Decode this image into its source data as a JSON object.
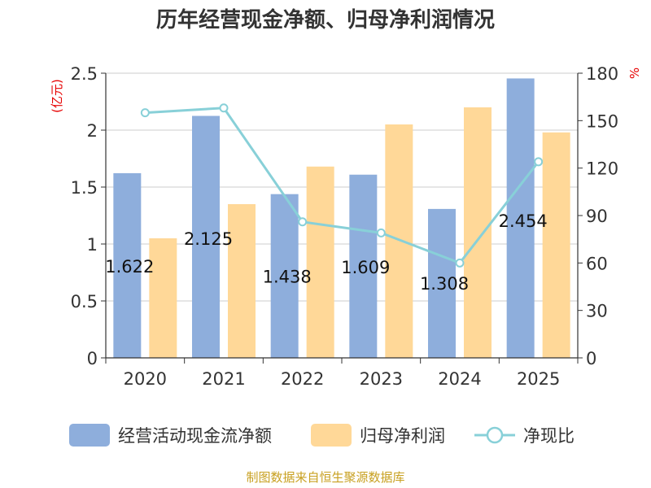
{
  "title": "历年经营现金净额、归母净利润情况",
  "source": "制图数据来自恒生聚源数据库",
  "chart_data": {
    "type": "bar",
    "categories": [
      "2020",
      "2021",
      "2022",
      "2023",
      "2024",
      "2025"
    ],
    "series": [
      {
        "name": "经营活动现金流净额",
        "kind": "bar",
        "axis": "left",
        "values": [
          1.622,
          2.125,
          1.438,
          1.609,
          1.308,
          2.454
        ],
        "color": "#8eaedc"
      },
      {
        "name": "归母净利润",
        "kind": "bar",
        "axis": "left",
        "values": [
          1.05,
          1.35,
          1.68,
          2.05,
          2.2,
          1.98
        ],
        "color": "#ffd898"
      },
      {
        "name": "净现比",
        "kind": "line",
        "axis": "right",
        "values": [
          155,
          158,
          86,
          79,
          60,
          124
        ],
        "color": "#88d0d8"
      }
    ],
    "data_labels": [
      "1.622",
      "2.125",
      "1.438",
      "1.609",
      "1.308",
      "2.454"
    ],
    "y_left": {
      "unit": "(亿元)",
      "min": 0,
      "max": 2.5,
      "ticks": [
        0,
        0.5,
        1,
        1.5,
        2,
        2.5
      ],
      "tick_labels": [
        "0",
        "0.5",
        "1",
        "1.5",
        "2",
        "2.5"
      ]
    },
    "y_right": {
      "unit": "%",
      "min": 0,
      "max": 180,
      "ticks": [
        0,
        30,
        60,
        90,
        120,
        150,
        180
      ],
      "tick_labels": [
        "0",
        "30",
        "60",
        "90",
        "120",
        "150",
        "180"
      ]
    },
    "grid": true,
    "legend_position": "bottom"
  }
}
